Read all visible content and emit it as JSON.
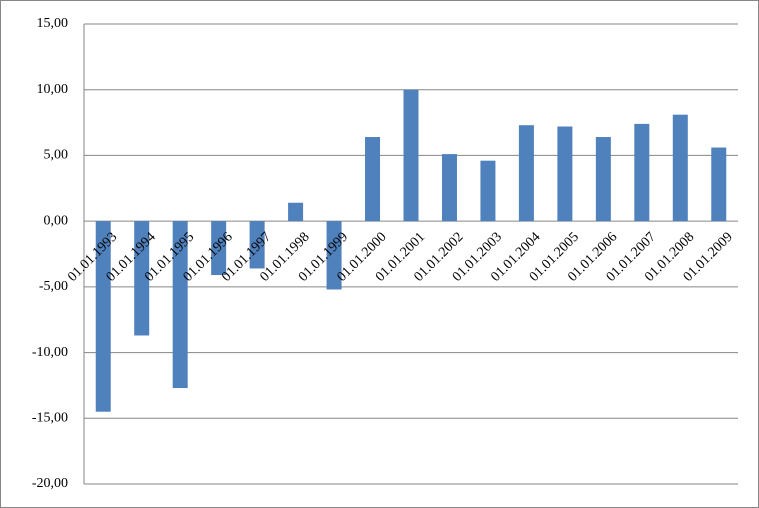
{
  "chart_data": {
    "type": "bar",
    "categories": [
      "01.01.1993",
      "01.01.1994",
      "01.01.1995",
      "01.01.1996",
      "01.01.1997",
      "01.01.1998",
      "01.01.1999",
      "01.01.2000",
      "01.01.2001",
      "01.01.2002",
      "01.01.2003",
      "01.01.2004",
      "01.01.2005",
      "01.01.2006",
      "01.01.2007",
      "01.01.2008",
      "01.01.2009"
    ],
    "values": [
      -14.5,
      -8.7,
      -12.7,
      -4.1,
      -3.6,
      1.4,
      -5.2,
      6.4,
      10.0,
      5.1,
      4.6,
      7.3,
      7.2,
      6.4,
      7.4,
      8.1,
      5.6
    ],
    "color": "#4f81bd",
    "ylim": [
      -20,
      15
    ],
    "yticks": [
      {
        "value": -20,
        "label": "-20,00"
      },
      {
        "value": -15,
        "label": "-15,00"
      },
      {
        "value": -10,
        "label": "-10,00"
      },
      {
        "value": -5,
        "label": "-5,00"
      },
      {
        "value": 0,
        "label": "0,00"
      },
      {
        "value": 5,
        "label": "5,00"
      },
      {
        "value": 10,
        "label": "10,00"
      },
      {
        "value": 15,
        "label": "15,00"
      }
    ],
    "grid": true
  }
}
